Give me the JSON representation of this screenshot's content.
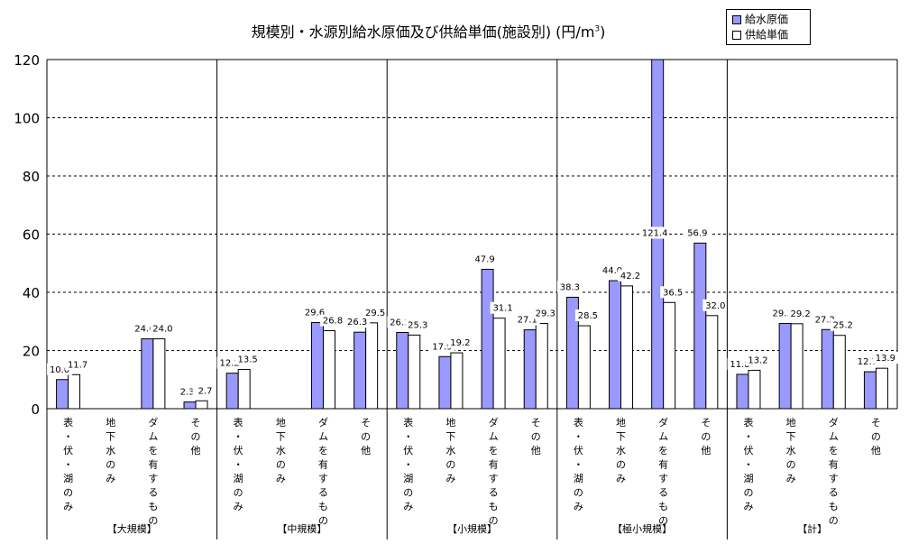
{
  "title": {
    "main": "規模別・水源別給水原価及び供給単価(施設別) (円/m",
    "sup": "3",
    "close": ")"
  },
  "legend": {
    "series1": "給水原価",
    "series2": "供給単価"
  },
  "colors": {
    "series1": "#9999ff",
    "series2": "#ffffff"
  },
  "chart_data": {
    "type": "bar",
    "ylim": [
      0,
      120
    ],
    "yticks": [
      "0",
      "20",
      "40",
      "60",
      "80",
      "100",
      "120"
    ],
    "grid": true,
    "legend_position": "top-right",
    "groups": [
      {
        "label": "【大規模】",
        "categories": [
          "表・伏・湖のみ",
          "地下水のみ",
          "ダムを有するもの",
          "その他"
        ],
        "series1": [
          10.0,
          null,
          24.0,
          2.3
        ],
        "series2": [
          11.7,
          null,
          24.0,
          2.7
        ],
        "labels1": [
          "10.0",
          "",
          "24.0",
          "2.3"
        ],
        "labels2": [
          "11.7",
          "",
          "24.0",
          "2.7"
        ]
      },
      {
        "label": "【中規模】",
        "categories": [
          "表・伏・湖のみ",
          "地下水のみ",
          "ダムを有するもの",
          "その他"
        ],
        "series1": [
          12.2,
          null,
          29.6,
          26.3
        ],
        "series2": [
          13.5,
          null,
          26.8,
          29.5
        ],
        "labels1": [
          "12.2",
          "",
          "29.6",
          "26.3"
        ],
        "labels2": [
          "13.5",
          "",
          "26.8",
          "29.5"
        ]
      },
      {
        "label": "【小規模】",
        "categories": [
          "表・伏・湖のみ",
          "地下水のみ",
          "ダムを有するもの",
          "その他"
        ],
        "series1": [
          26.2,
          17.9,
          47.9,
          27.1
        ],
        "series2": [
          25.3,
          19.2,
          31.1,
          29.3
        ],
        "labels1": [
          "26.2",
          "17.9",
          "47.9",
          "27.1"
        ],
        "labels2": [
          "25.3",
          "19.2",
          "31.1",
          "29.3"
        ]
      },
      {
        "label": "【極小規模】",
        "categories": [
          "表・伏・湖のみ",
          "地下水のみ",
          "ダムを有するもの",
          "その他"
        ],
        "series1": [
          38.3,
          44.0,
          121.4,
          56.9
        ],
        "series2": [
          28.5,
          42.2,
          36.5,
          32.0
        ],
        "labels1": [
          "38.3",
          "44.0",
          "121.4",
          "56.9"
        ],
        "labels2": [
          "28.5",
          "42.2",
          "36.5",
          "32.0"
        ]
      },
      {
        "label": "【計】",
        "categories": [
          "表・伏・湖のみ",
          "地下水のみ",
          "ダムを有するもの",
          "その他"
        ],
        "series1": [
          11.8,
          29.3,
          27.2,
          12.7
        ],
        "series2": [
          13.2,
          29.2,
          25.2,
          13.9
        ],
        "labels1": [
          "11.8",
          "29.3",
          "27.2",
          "12.7"
        ],
        "labels2": [
          "13.2",
          "29.2",
          "25.2",
          "13.9"
        ]
      }
    ]
  }
}
